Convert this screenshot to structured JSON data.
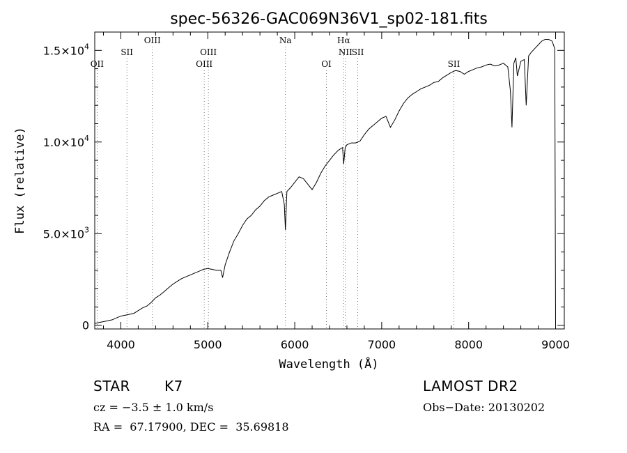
{
  "chart_data": {
    "type": "line",
    "title": "spec-56326-GAC069N36V1_sp02-181.fits",
    "xlabel": "Wavelength (Å)",
    "ylabel": "Flux (relative)",
    "xlim": [
      3700,
      9100
    ],
    "ylim": [
      -200,
      16000
    ],
    "x_ticks": [
      4000,
      5000,
      6000,
      7000,
      8000,
      9000
    ],
    "x_tick_labels": [
      "4000",
      "5000",
      "6000",
      "7000",
      "8000",
      "9000"
    ],
    "y_ticks": [
      0,
      5000,
      10000,
      15000
    ],
    "y_tick_labels": [
      {
        "mant": "0",
        "exp": ""
      },
      {
        "mant": "5.0×10",
        "exp": "3"
      },
      {
        "mant": "1.0×10",
        "exp": "4"
      },
      {
        "mant": "1.5×10",
        "exp": "4"
      }
    ],
    "grid": false,
    "line_marks": [
      {
        "label": "OII",
        "x": 3727,
        "row": 3
      },
      {
        "label": "SII",
        "x": 4070,
        "row": 2
      },
      {
        "label": "OIII",
        "x": 4363,
        "row": 1
      },
      {
        "label": "OIII",
        "x": 4959,
        "row": 3
      },
      {
        "label": "OIII",
        "x": 5007,
        "row": 2
      },
      {
        "label": "Na",
        "x": 5893,
        "row": 1
      },
      {
        "label": "OI",
        "x": 6364,
        "row": 3
      },
      {
        "label": "Hα",
        "x": 6563,
        "row": 1
      },
      {
        "label": "NII",
        "x": 6583,
        "row": 2
      },
      {
        "label": "SII",
        "x": 6725,
        "row": 2
      },
      {
        "label": "SII",
        "x": 7830,
        "row": 3
      }
    ],
    "series": [
      {
        "x": [
          3700,
          3750,
          3800,
          3850,
          3900,
          3950,
          4000,
          4050,
          4100,
          4150,
          4200,
          4250,
          4300,
          4350,
          4400,
          4450,
          4500,
          4550,
          4600,
          4650,
          4700,
          4750,
          4800,
          4850,
          4900,
          4950,
          5000,
          5050,
          5100,
          5150,
          5170,
          5200,
          5250,
          5300,
          5350,
          5400,
          5450,
          5500,
          5550,
          5600,
          5650,
          5700,
          5750,
          5800,
          5850,
          5880,
          5893,
          5910,
          5950,
          6000,
          6050,
          6100,
          6150,
          6200,
          6250,
          6300,
          6350,
          6400,
          6450,
          6500,
          6550,
          6563,
          6580,
          6600,
          6650,
          6700,
          6750,
          6800,
          6850,
          6900,
          6950,
          7000,
          7050,
          7100,
          7150,
          7200,
          7250,
          7300,
          7350,
          7400,
          7450,
          7500,
          7550,
          7600,
          7650,
          7700,
          7750,
          7800,
          7850,
          7900,
          7950,
          8000,
          8050,
          8100,
          8150,
          8200,
          8250,
          8300,
          8350,
          8400,
          8450,
          8480,
          8498,
          8520,
          8542,
          8560,
          8600,
          8640,
          8662,
          8690,
          8720,
          8760,
          8800,
          8840,
          8880,
          8920,
          8960,
          8990,
          9000
        ],
        "y": [
          100,
          150,
          200,
          250,
          300,
          400,
          500,
          550,
          600,
          650,
          800,
          950,
          1050,
          1250,
          1500,
          1650,
          1850,
          2050,
          2250,
          2400,
          2550,
          2650,
          2750,
          2850,
          2950,
          3050,
          3100,
          3050,
          3000,
          3000,
          2600,
          3300,
          4000,
          4600,
          5000,
          5450,
          5800,
          6000,
          6300,
          6500,
          6800,
          7000,
          7100,
          7200,
          7300,
          6600,
          5200,
          7300,
          7500,
          7800,
          8100,
          8000,
          7700,
          7400,
          7800,
          8300,
          8700,
          9000,
          9300,
          9550,
          9700,
          8800,
          9700,
          9850,
          9950,
          9950,
          10050,
          10400,
          10700,
          10900,
          11100,
          11300,
          11400,
          10800,
          11200,
          11700,
          12100,
          12400,
          12600,
          12750,
          12900,
          13000,
          13100,
          13250,
          13300,
          13500,
          13650,
          13800,
          13900,
          13850,
          13700,
          13850,
          13950,
          14050,
          14100,
          14200,
          14250,
          14150,
          14200,
          14300,
          14100,
          12800,
          10800,
          14300,
          14600,
          13600,
          14400,
          14500,
          12000,
          14700,
          14900,
          15100,
          15300,
          15500,
          15600,
          15600,
          15500,
          15100,
          100
        ]
      }
    ]
  },
  "info": {
    "object_type": "STAR",
    "subclass": "K7",
    "cz": "cz = −3.5 ± 1.0 km/s",
    "coords": "RA =  67.17900, DEC =  35.69818",
    "survey": "LAMOST DR2",
    "obs_date": "Obs−Date: 20130202"
  }
}
